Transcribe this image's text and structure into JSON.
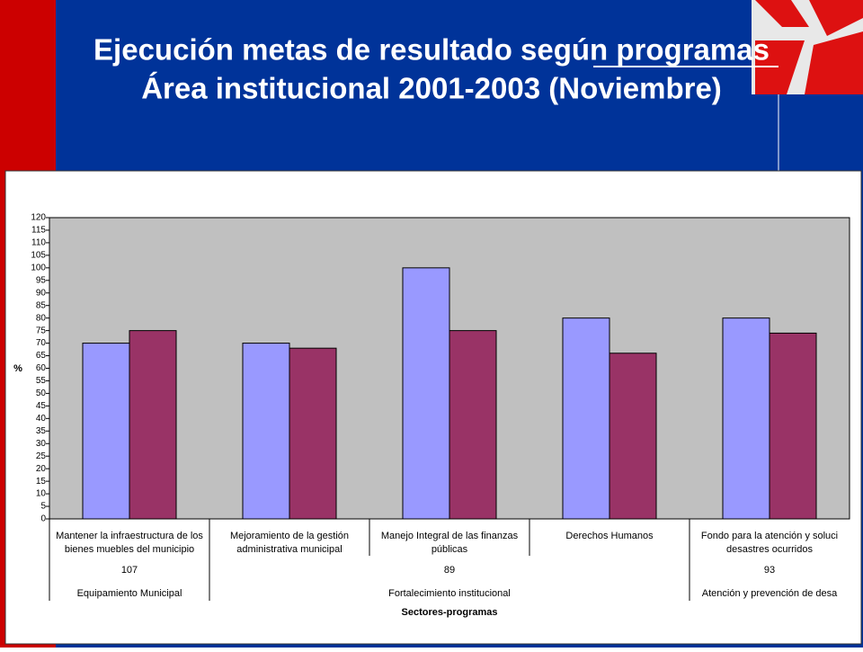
{
  "title_lines": [
    "Ejecución metas de resultado según programas",
    "Área institucional 2001-2003 (Noviembre)"
  ],
  "chart_data": {
    "type": "bar",
    "y_label": "%",
    "x_label": "Sectores-programas",
    "categories": [
      [
        "Mantener la infraestructura de los",
        "bienes muebles del municipio"
      ],
      [
        "Mejoramiento de la gestión",
        "administrativa municipal"
      ],
      [
        "Manejo Integral de las finanzas",
        "públicas"
      ],
      [
        "Derechos Humanos"
      ],
      [
        "Fondo para la atención y soluci",
        "desastres ocurridos"
      ]
    ],
    "sectors": [
      {
        "code": "107",
        "name": "Equipamiento Municipal",
        "span": [
          0,
          1
        ]
      },
      {
        "code": "89",
        "name": "Fortalecimiento institucional",
        "span": [
          1,
          4
        ]
      },
      {
        "code": "93",
        "name": "Atención y prevención de desa",
        "span": [
          4,
          5
        ]
      }
    ],
    "series": [
      {
        "color": "#9999ff",
        "values": [
          70,
          70,
          100,
          80,
          80
        ]
      },
      {
        "color": "#993366",
        "values": [
          75,
          68,
          75,
          66,
          74
        ]
      }
    ],
    "ylim": [
      0,
      120
    ],
    "yticks": [
      0,
      5,
      10,
      15,
      20,
      25,
      30,
      35,
      40,
      45,
      50,
      55,
      60,
      65,
      70,
      75,
      80,
      85,
      90,
      95,
      100,
      105,
      110,
      115,
      120
    ],
    "plot_background": "#c0c0c0"
  }
}
